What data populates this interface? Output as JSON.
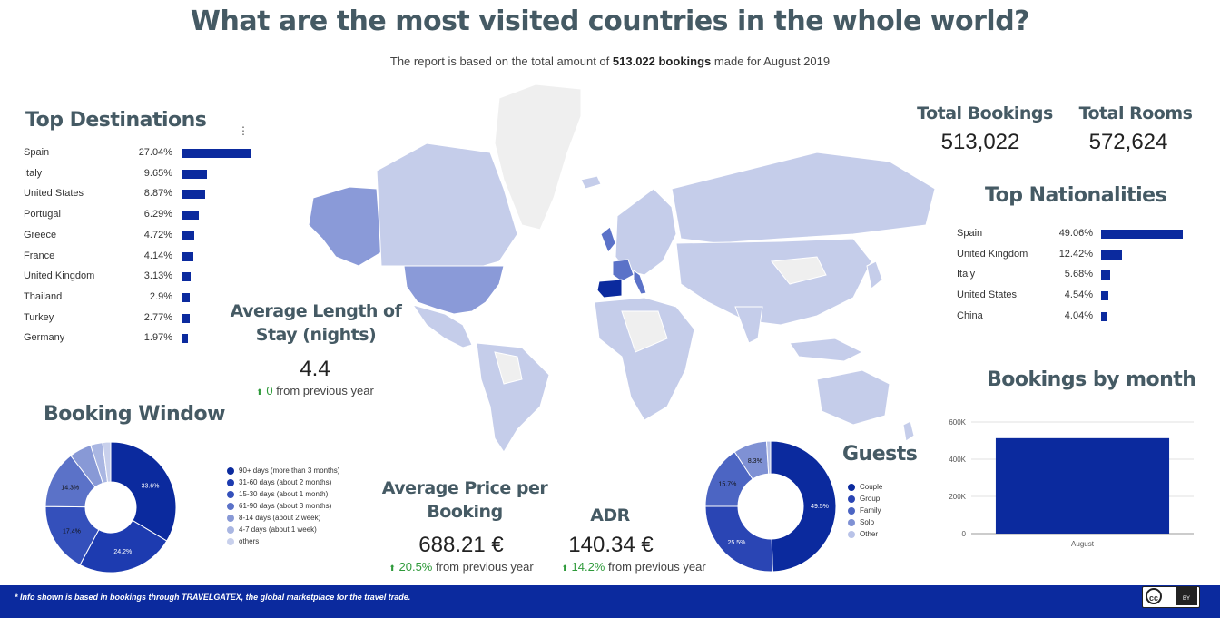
{
  "header": {
    "title": "What are the most visited countries in the whole world?",
    "subtitle_pre": "The report is based on the total amount of",
    "subtitle_bold": "513.022 bookings",
    "subtitle_post": "made for August 2019"
  },
  "top_destinations": {
    "title": "Top Destinations",
    "max": 27.04,
    "rows": [
      {
        "name": "Spain",
        "pct": "27.04%",
        "value": 27.04
      },
      {
        "name": "Italy",
        "pct": "9.65%",
        "value": 9.65
      },
      {
        "name": "United States",
        "pct": "8.87%",
        "value": 8.87
      },
      {
        "name": "Portugal",
        "pct": "6.29%",
        "value": 6.29
      },
      {
        "name": "Greece",
        "pct": "4.72%",
        "value": 4.72
      },
      {
        "name": "France",
        "pct": "4.14%",
        "value": 4.14
      },
      {
        "name": "United Kingdom",
        "pct": "3.13%",
        "value": 3.13
      },
      {
        "name": "Thailand",
        "pct": "2.9%",
        "value": 2.9
      },
      {
        "name": "Turkey",
        "pct": "2.77%",
        "value": 2.77
      },
      {
        "name": "Germany",
        "pct": "1.97%",
        "value": 1.97
      }
    ]
  },
  "avg_stay": {
    "title_line1": "Average Length of",
    "title_line2": "Stay (nights)",
    "value": "4.4",
    "delta_arrow": "⬆",
    "delta_value": "0",
    "delta_text": "from previous year"
  },
  "booking_window": {
    "title": "Booking Window",
    "slices": [
      {
        "label": "90+ days (more than 3 months)",
        "value": 33.6,
        "display": "33.6%",
        "color": "#0b2a9e"
      },
      {
        "label": "31-60 days (about 2 months)",
        "value": 24.2,
        "display": "24.2%",
        "color": "#1d3bb0"
      },
      {
        "label": "15-30 days (about 1 month)",
        "value": 17.4,
        "display": "17.4%",
        "color": "#3450bb"
      },
      {
        "label": "61-90 days (about 3 months)",
        "value": 14.3,
        "display": "14.3%",
        "color": "#5b72c8"
      },
      {
        "label": "8-14 days (about 2 week)",
        "value": 5.5,
        "display": "",
        "color": "#8899d6"
      },
      {
        "label": "4-7 days (about 1 week)",
        "value": 3.0,
        "display": "",
        "color": "#a9b6e2"
      },
      {
        "label": "others",
        "value": 2.0,
        "display": "",
        "color": "#c8d0ec"
      }
    ]
  },
  "avg_price": {
    "title_line1": "Average Price per",
    "title_line2": "Booking",
    "value": "688.21 €",
    "delta_arrow": "⬆",
    "delta_value": "20.5%",
    "delta_text": "from previous year"
  },
  "adr": {
    "title": "ADR",
    "value": "140.34 €",
    "delta_arrow": "⬆",
    "delta_value": "14.2%",
    "delta_text": "from previous year"
  },
  "guests": {
    "title": "Guests",
    "slices": [
      {
        "label": "Couple",
        "value": 49.5,
        "display": "49.5%",
        "color": "#0b2a9e"
      },
      {
        "label": "Group",
        "value": 25.5,
        "display": "25.5%",
        "color": "#2a45b4"
      },
      {
        "label": "Family",
        "value": 15.7,
        "display": "15.7%",
        "color": "#4c65c3"
      },
      {
        "label": "Solo",
        "value": 8.3,
        "display": "8.3%",
        "color": "#7f91d4"
      },
      {
        "label": "Other",
        "value": 1.0,
        "display": "",
        "color": "#b9c3e8"
      }
    ]
  },
  "kpis": {
    "total_bookings_label": "Total Bookings",
    "total_bookings_value": "513,022",
    "total_rooms_label": "Total Rooms",
    "total_rooms_value": "572,624"
  },
  "top_nationalities": {
    "title": "Top Nationalities",
    "max": 49.06,
    "rows": [
      {
        "name": "Spain",
        "pct": "49.06%",
        "value": 49.06
      },
      {
        "name": "United Kingdom",
        "pct": "12.42%",
        "value": 12.42
      },
      {
        "name": "Italy",
        "pct": "5.68%",
        "value": 5.68
      },
      {
        "name": "United States",
        "pct": "4.54%",
        "value": 4.54
      },
      {
        "name": "China",
        "pct": "4.04%",
        "value": 4.04
      }
    ]
  },
  "chart_data": {
    "type": "bar",
    "title": "Bookings by month",
    "categories": [
      "August"
    ],
    "values": [
      513022
    ],
    "ylim": [
      0,
      600000
    ],
    "yticks": [
      "0",
      "200K",
      "400K",
      "600K"
    ],
    "grid": true,
    "color": "#0b2a9e"
  },
  "footer": {
    "text": "* Info shown is based in bookings through TRAVELGATEX, the global marketplace for the travel trade.",
    "license_label": "cc",
    "license_by": "BY"
  },
  "colors": {
    "accent": "#0b2a9e",
    "heading": "#455a64",
    "positive": "#2e9a3a",
    "map_light": "#c5cdea",
    "map_mid": "#8a9ad8",
    "map_none": "#efefef"
  }
}
